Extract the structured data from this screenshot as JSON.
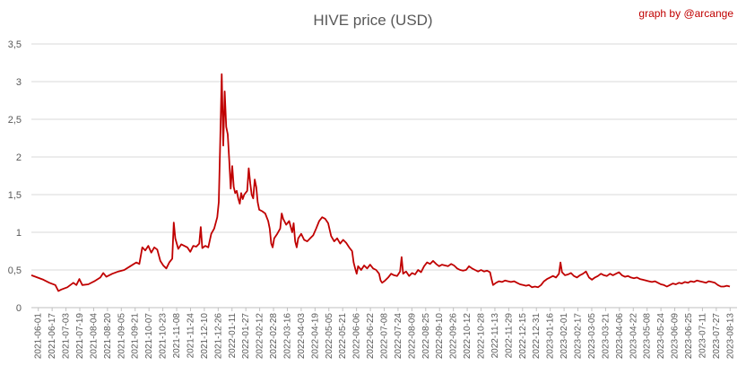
{
  "title": "HIVE price (USD)",
  "credit": "graph by @arcange",
  "colors": {
    "line": "#c00000",
    "credit": "#c00000",
    "text": "#595959",
    "grid": "#d9d9d9"
  },
  "chart_data": {
    "type": "line",
    "title": "HIVE price (USD)",
    "xlabel": "",
    "ylabel": "",
    "ylim": [
      0,
      3.5
    ],
    "y_ticks": [
      "0",
      "0,5",
      "1",
      "1,5",
      "2",
      "2,5",
      "3",
      "3,5"
    ],
    "x_ticks": [
      "2021-06-01",
      "2021-06-17",
      "2021-07-03",
      "2021-07-19",
      "2021-08-04",
      "2021-08-20",
      "2021-09-05",
      "2021-09-21",
      "2021-10-07",
      "2021-10-23",
      "2021-11-08",
      "2021-11-24",
      "2021-12-10",
      "2021-12-26",
      "2022-01-11",
      "2022-01-27",
      "2022-02-12",
      "2022-02-28",
      "2022-03-16",
      "2022-04-03",
      "2022-04-19",
      "2022-05-05",
      "2022-05-21",
      "2022-06-06",
      "2022-06-22",
      "2022-07-08",
      "2022-07-24",
      "2022-08-09",
      "2022-08-25",
      "2022-09-10",
      "2022-09-26",
      "2022-10-12",
      "2022-10-28",
      "2022-11-13",
      "2022-11-29",
      "2022-12-15",
      "2022-12-31",
      "2023-01-16",
      "2023-02-01",
      "2023-02-17",
      "2023-03-05",
      "2023-03-21",
      "2023-04-06",
      "2023-04-22",
      "2023-05-08",
      "2023-05-24",
      "2023-06-09",
      "2023-06-25",
      "2023-07-11",
      "2023-07-27",
      "2023-08-13"
    ],
    "grid": true,
    "legend": "none",
    "series": [
      {
        "values": [
          [
            0,
            0.43
          ],
          [
            4,
            0.4
          ],
          [
            8,
            0.37
          ],
          [
            12,
            0.33
          ],
          [
            16,
            0.3
          ],
          [
            18,
            0.22
          ],
          [
            20,
            0.24
          ],
          [
            24,
            0.27
          ],
          [
            28,
            0.33
          ],
          [
            30,
            0.3
          ],
          [
            32,
            0.38
          ],
          [
            34,
            0.3
          ],
          [
            38,
            0.31
          ],
          [
            42,
            0.35
          ],
          [
            46,
            0.4
          ],
          [
            48,
            0.46
          ],
          [
            50,
            0.41
          ],
          [
            54,
            0.45
          ],
          [
            58,
            0.48
          ],
          [
            62,
            0.5
          ],
          [
            66,
            0.55
          ],
          [
            70,
            0.6
          ],
          [
            72,
            0.58
          ],
          [
            74,
            0.8
          ],
          [
            76,
            0.76
          ],
          [
            78,
            0.82
          ],
          [
            80,
            0.73
          ],
          [
            82,
            0.8
          ],
          [
            84,
            0.77
          ],
          [
            86,
            0.62
          ],
          [
            88,
            0.56
          ],
          [
            90,
            0.52
          ],
          [
            92,
            0.6
          ],
          [
            94,
            0.65
          ],
          [
            95,
            1.13
          ],
          [
            96,
            0.92
          ],
          [
            98,
            0.78
          ],
          [
            100,
            0.84
          ],
          [
            104,
            0.8
          ],
          [
            106,
            0.74
          ],
          [
            108,
            0.82
          ],
          [
            110,
            0.81
          ],
          [
            112,
            0.85
          ],
          [
            113,
            1.07
          ],
          [
            114,
            0.79
          ],
          [
            116,
            0.82
          ],
          [
            118,
            0.8
          ],
          [
            120,
            0.98
          ],
          [
            122,
            1.05
          ],
          [
            124,
            1.2
          ],
          [
            125,
            1.4
          ],
          [
            126,
            2.2
          ],
          [
            127,
            3.1
          ],
          [
            128,
            2.15
          ],
          [
            129,
            2.87
          ],
          [
            130,
            2.4
          ],
          [
            131,
            2.3
          ],
          [
            132,
            1.95
          ],
          [
            133,
            1.58
          ],
          [
            134,
            1.88
          ],
          [
            135,
            1.6
          ],
          [
            136,
            1.52
          ],
          [
            137,
            1.55
          ],
          [
            138,
            1.45
          ],
          [
            139,
            1.38
          ],
          [
            140,
            1.52
          ],
          [
            141,
            1.44
          ],
          [
            142,
            1.5
          ],
          [
            144,
            1.55
          ],
          [
            145,
            1.85
          ],
          [
            146,
            1.65
          ],
          [
            147,
            1.5
          ],
          [
            148,
            1.45
          ],
          [
            149,
            1.7
          ],
          [
            150,
            1.6
          ],
          [
            151,
            1.4
          ],
          [
            152,
            1.3
          ],
          [
            154,
            1.28
          ],
          [
            156,
            1.25
          ],
          [
            158,
            1.15
          ],
          [
            159,
            1.05
          ],
          [
            160,
            0.85
          ],
          [
            161,
            0.8
          ],
          [
            162,
            0.92
          ],
          [
            164,
            0.98
          ],
          [
            166,
            1.05
          ],
          [
            167,
            1.25
          ],
          [
            168,
            1.18
          ],
          [
            170,
            1.1
          ],
          [
            172,
            1.15
          ],
          [
            174,
            1.0
          ],
          [
            175,
            1.12
          ],
          [
            176,
            0.88
          ],
          [
            177,
            0.8
          ],
          [
            178,
            0.92
          ],
          [
            180,
            0.98
          ],
          [
            182,
            0.9
          ],
          [
            184,
            0.88
          ],
          [
            186,
            0.92
          ],
          [
            188,
            0.96
          ],
          [
            190,
            1.05
          ],
          [
            192,
            1.15
          ],
          [
            194,
            1.2
          ],
          [
            196,
            1.18
          ],
          [
            198,
            1.12
          ],
          [
            200,
            0.95
          ],
          [
            202,
            0.88
          ],
          [
            204,
            0.92
          ],
          [
            206,
            0.85
          ],
          [
            208,
            0.9
          ],
          [
            210,
            0.86
          ],
          [
            212,
            0.8
          ],
          [
            214,
            0.75
          ],
          [
            215,
            0.6
          ],
          [
            216,
            0.52
          ],
          [
            217,
            0.45
          ],
          [
            218,
            0.55
          ],
          [
            220,
            0.5
          ],
          [
            222,
            0.56
          ],
          [
            224,
            0.52
          ],
          [
            226,
            0.57
          ],
          [
            228,
            0.52
          ],
          [
            230,
            0.5
          ],
          [
            232,
            0.45
          ],
          [
            233,
            0.36
          ],
          [
            234,
            0.33
          ],
          [
            236,
            0.36
          ],
          [
            238,
            0.4
          ],
          [
            240,
            0.45
          ],
          [
            242,
            0.43
          ],
          [
            244,
            0.42
          ],
          [
            246,
            0.48
          ],
          [
            247,
            0.67
          ],
          [
            248,
            0.45
          ],
          [
            250,
            0.48
          ],
          [
            252,
            0.42
          ],
          [
            254,
            0.46
          ],
          [
            256,
            0.44
          ],
          [
            258,
            0.5
          ],
          [
            260,
            0.47
          ],
          [
            262,
            0.55
          ],
          [
            264,
            0.6
          ],
          [
            266,
            0.58
          ],
          [
            268,
            0.62
          ],
          [
            270,
            0.58
          ],
          [
            272,
            0.55
          ],
          [
            274,
            0.57
          ],
          [
            276,
            0.56
          ],
          [
            278,
            0.55
          ],
          [
            280,
            0.58
          ],
          [
            282,
            0.56
          ],
          [
            284,
            0.52
          ],
          [
            286,
            0.5
          ],
          [
            288,
            0.49
          ],
          [
            290,
            0.5
          ],
          [
            292,
            0.55
          ],
          [
            294,
            0.52
          ],
          [
            296,
            0.5
          ],
          [
            298,
            0.48
          ],
          [
            300,
            0.5
          ],
          [
            302,
            0.48
          ],
          [
            304,
            0.49
          ],
          [
            306,
            0.47
          ],
          [
            307,
            0.38
          ],
          [
            308,
            0.3
          ],
          [
            310,
            0.33
          ],
          [
            312,
            0.35
          ],
          [
            314,
            0.34
          ],
          [
            316,
            0.36
          ],
          [
            318,
            0.35
          ],
          [
            320,
            0.34
          ],
          [
            322,
            0.35
          ],
          [
            324,
            0.33
          ],
          [
            326,
            0.31
          ],
          [
            328,
            0.3
          ],
          [
            330,
            0.29
          ],
          [
            332,
            0.3
          ],
          [
            334,
            0.27
          ],
          [
            336,
            0.28
          ],
          [
            338,
            0.27
          ],
          [
            340,
            0.3
          ],
          [
            342,
            0.35
          ],
          [
            344,
            0.38
          ],
          [
            346,
            0.4
          ],
          [
            348,
            0.42
          ],
          [
            350,
            0.4
          ],
          [
            352,
            0.45
          ],
          [
            353,
            0.6
          ],
          [
            354,
            0.47
          ],
          [
            356,
            0.43
          ],
          [
            358,
            0.44
          ],
          [
            360,
            0.46
          ],
          [
            362,
            0.42
          ],
          [
            364,
            0.4
          ],
          [
            366,
            0.43
          ],
          [
            368,
            0.45
          ],
          [
            370,
            0.48
          ],
          [
            372,
            0.4
          ],
          [
            374,
            0.37
          ],
          [
            376,
            0.4
          ],
          [
            378,
            0.42
          ],
          [
            380,
            0.45
          ],
          [
            382,
            0.43
          ],
          [
            384,
            0.42
          ],
          [
            386,
            0.45
          ],
          [
            388,
            0.43
          ],
          [
            390,
            0.45
          ],
          [
            392,
            0.47
          ],
          [
            394,
            0.43
          ],
          [
            396,
            0.41
          ],
          [
            398,
            0.42
          ],
          [
            400,
            0.4
          ],
          [
            402,
            0.39
          ],
          [
            404,
            0.4
          ],
          [
            406,
            0.38
          ],
          [
            408,
            0.37
          ],
          [
            410,
            0.36
          ],
          [
            412,
            0.35
          ],
          [
            414,
            0.34
          ],
          [
            416,
            0.35
          ],
          [
            418,
            0.33
          ],
          [
            420,
            0.31
          ],
          [
            422,
            0.3
          ],
          [
            424,
            0.28
          ],
          [
            426,
            0.3
          ],
          [
            428,
            0.32
          ],
          [
            430,
            0.31
          ],
          [
            432,
            0.33
          ],
          [
            434,
            0.32
          ],
          [
            436,
            0.34
          ],
          [
            438,
            0.33
          ],
          [
            440,
            0.35
          ],
          [
            442,
            0.34
          ],
          [
            444,
            0.36
          ],
          [
            446,
            0.35
          ],
          [
            448,
            0.34
          ],
          [
            450,
            0.33
          ],
          [
            452,
            0.35
          ],
          [
            454,
            0.34
          ],
          [
            456,
            0.33
          ],
          [
            458,
            0.3
          ],
          [
            460,
            0.28
          ],
          [
            462,
            0.28
          ],
          [
            464,
            0.29
          ],
          [
            466,
            0.28
          ]
        ]
      }
    ]
  }
}
